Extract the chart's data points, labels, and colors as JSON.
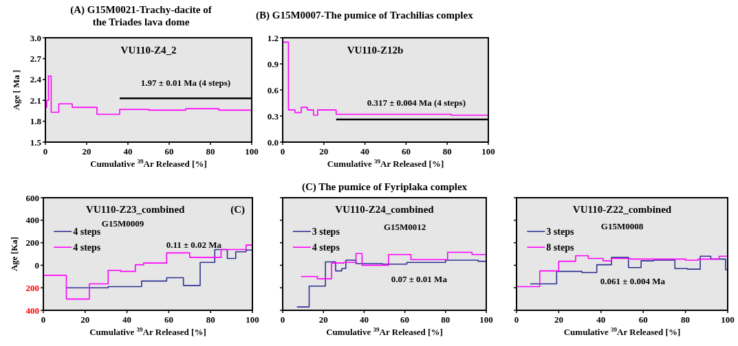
{
  "chart_data": [
    {
      "type": "step",
      "title": "(A) G15M0021-Trachy-dacite of the Triades lava dome",
      "xlabel": "Cumulative $^{39}$Ar Released [%]",
      "ylabel": "Age [ Ma ]",
      "xlim": [
        0,
        100
      ],
      "xticks": [
        0,
        20,
        40,
        60,
        80,
        100
      ],
      "ylim": [
        1.5,
        3.0
      ],
      "yticks": [
        1.5,
        1.8,
        2.1,
        2.4,
        2.7,
        {
          "value": 3.0,
          "label": "3.0"
        }
      ],
      "legend": false,
      "annotations": [
        "VU110-Z4_2",
        "1.97 ± 0.01 Ma (4 steps)"
      ],
      "series": [
        {
          "color": "#ff00ff",
          "x": [
            0,
            0.6,
            1.5,
            2.8,
            6.5,
            13,
            25,
            36,
            50,
            68,
            84,
            100
          ],
          "values": [
            2.0,
            2.1,
            2.45,
            1.93,
            2.05,
            2.0,
            1.9,
            1.97,
            1.96,
            1.98,
            1.96,
            1.96
          ]
        },
        {
          "type": "line",
          "color": "#000000",
          "x": [
            36,
            100
          ],
          "values": [
            2.13,
            2.13
          ]
        }
      ]
    },
    {
      "type": "step",
      "title": "(B) G15M0007-The pumice of Trachilias complex",
      "xlabel": "Cumulative $^{39}$Ar Released [%]",
      "xlim": [
        0,
        100
      ],
      "xticks": [
        0,
        20,
        40,
        60,
        80,
        100
      ],
      "ylim": [
        0,
        1.2
      ],
      "yticks": [
        {
          "value": 0,
          "label": "0.0"
        },
        0.3,
        0.6,
        0.9,
        1.2
      ],
      "legend": false,
      "annotations": [
        "VU110-Z12b",
        "0.317 ± 0.004 Ma (4 steps)"
      ],
      "series": [
        {
          "color": "#ff00ff",
          "x": [
            0,
            2.8,
            6,
            9,
            12,
            15,
            17,
            26,
            82,
            100
          ],
          "values": [
            1.15,
            0.37,
            0.34,
            0.4,
            0.37,
            0.31,
            0.37,
            0.32,
            0.31,
            0.31
          ]
        },
        {
          "type": "line",
          "color": "#000000",
          "x": [
            26,
            100
          ],
          "values": [
            0.26,
            0.26
          ]
        }
      ]
    },
    {
      "type": "step",
      "xlabel": "Cumulative $^{39}$Ar Released [%]",
      "ylabel": "Age [Ka]",
      "xlim": [
        0,
        100
      ],
      "xticks": [
        0,
        20,
        40,
        60,
        80,
        100
      ],
      "ylim": [
        -400,
        600
      ],
      "yticks": [
        {
          "value": -400,
          "label": "400"
        },
        {
          "value": -200,
          "label": "200"
        },
        0,
        200,
        400,
        600
      ],
      "legend": "top left",
      "annotations": [
        "VU110-Z23_combined",
        "(C)",
        "G15M0009",
        "0.11 ± 0.02 Ma"
      ],
      "series": [
        {
          "name": "4 steps",
          "color": "#2e3192",
          "x": [
            11,
            22,
            31,
            47,
            59,
            67,
            75,
            82,
            88,
            92,
            97,
            100
          ],
          "values": [
            -200,
            -200,
            -190,
            -140,
            -110,
            -180,
            25,
            140,
            60,
            120,
            135,
            135
          ]
        },
        {
          "name": "4 steps",
          "color": "#ff00ff",
          "x": [
            0,
            11,
            22,
            31,
            37,
            44,
            48,
            59,
            70,
            85,
            97,
            100
          ],
          "values": [
            -90,
            -300,
            -165,
            -45,
            -55,
            5,
            20,
            110,
            70,
            140,
            180,
            180
          ]
        }
      ]
    },
    {
      "type": "step",
      "title": "(C) The pumice of Fyriplaka complex",
      "xlabel": "Cumulative $^{39}$Ar Released [%]",
      "xlim": [
        0,
        100
      ],
      "xticks": [
        0,
        20,
        40,
        60,
        80,
        100
      ],
      "ylim": [
        -400,
        600
      ],
      "yticks": [
        {
          "value": -400,
          "label": null
        },
        {
          "value": -200,
          "label": null
        },
        {
          "value": 0,
          "label": null
        },
        {
          "value": 200,
          "label": null
        },
        {
          "value": 400,
          "label": null
        },
        {
          "value": 600,
          "label": null
        }
      ],
      "tick_labels": "x",
      "legend": "top left",
      "annotations": [
        "VU110-Z24_combined",
        "G15M0012",
        "0.07 ± 0.01 Ma"
      ],
      "series": [
        {
          "name": "3 steps",
          "color": "#2e3192",
          "x": [
            7,
            13,
            21,
            26,
            29,
            31,
            36,
            49,
            61,
            80,
            96,
            100
          ],
          "values": [
            -370,
            -185,
            30,
            -50,
            -30,
            45,
            15,
            10,
            25,
            45,
            35,
            35
          ]
        },
        {
          "name": "4 steps",
          "color": "#ff00ff",
          "x": [
            9,
            17,
            24,
            30,
            36,
            39,
            52,
            63,
            81,
            93,
            100
          ],
          "values": [
            -100,
            -120,
            20,
            25,
            105,
            0,
            95,
            50,
            115,
            95,
            95
          ]
        }
      ]
    },
    {
      "type": "step",
      "xlabel": "Cumulative $^{39}$Ar Released [%]",
      "xlim": [
        0,
        100
      ],
      "xticks": [
        0,
        20,
        40,
        60,
        80,
        100
      ],
      "ylim": [
        -400,
        600
      ],
      "yticks": [
        {
          "value": -400,
          "label": null
        },
        {
          "value": -200,
          "label": null
        },
        {
          "value": 0,
          "label": null
        },
        {
          "value": 200,
          "label": null
        },
        {
          "value": 400,
          "label": null
        },
        {
          "value": 600,
          "label": null
        }
      ],
      "tick_labels": "x",
      "legend": "top left",
      "annotations": [
        "VU110-Z22_combined",
        "G15M0008",
        "0.061 ± 0.004 Ma"
      ],
      "series": [
        {
          "name": "3 steps",
          "color": "#2e3192",
          "x": [
            6.5,
            19,
            31,
            38,
            45,
            53,
            59,
            65,
            75,
            81,
            87,
            92,
            99,
            100
          ],
          "values": [
            -165,
            -55,
            -65,
            5,
            70,
            -20,
            40,
            45,
            -30,
            -35,
            80,
            55,
            -40,
            -40
          ]
        },
        {
          "name": "8 steps",
          "color": "#ff00ff",
          "x": [
            0,
            11,
            20,
            28,
            34,
            41,
            45,
            54,
            80,
            86,
            96,
            100
          ],
          "values": [
            -190,
            -50,
            35,
            85,
            60,
            40,
            60,
            55,
            45,
            55,
            80,
            80
          ]
        }
      ]
    }
  ]
}
